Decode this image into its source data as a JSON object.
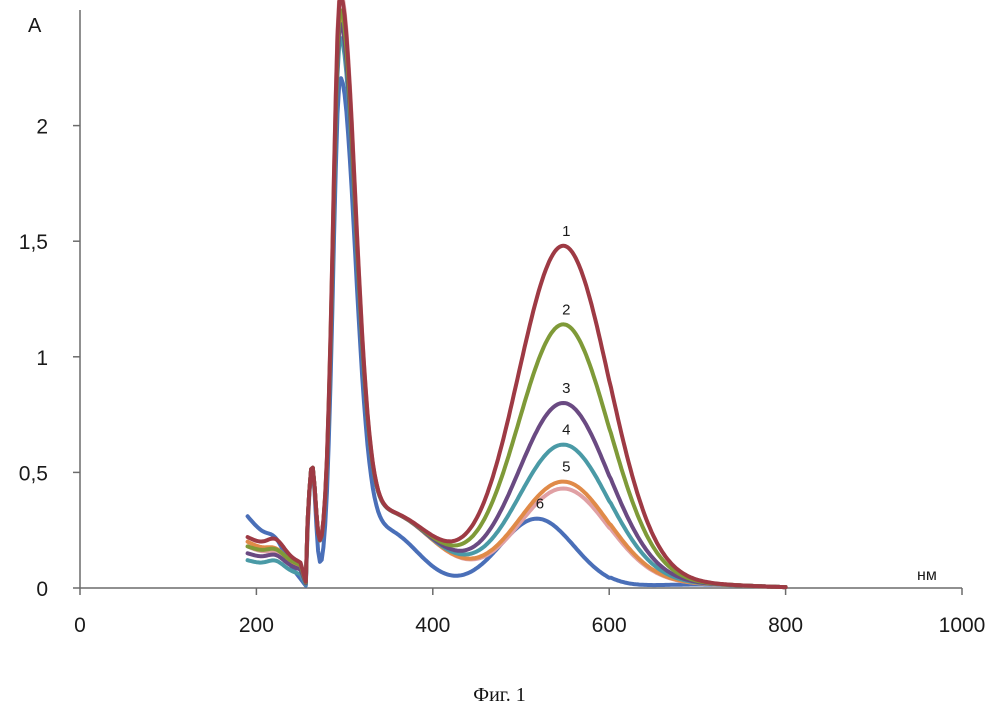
{
  "chart_data": {
    "type": "line",
    "title": "",
    "ylabel": "A",
    "xlabel": "нм",
    "xlim": [
      0,
      1000
    ],
    "ylim": [
      0,
      2.5
    ],
    "x_ticks": [
      0,
      200,
      400,
      600,
      800,
      1000
    ],
    "x_tick_labels": [
      "0",
      "200",
      "400",
      "600",
      "800",
      "1000"
    ],
    "y_ticks": [
      0,
      0.5,
      1,
      1.5,
      2
    ],
    "y_tick_labels": [
      "0",
      "0,5",
      "1",
      "1,5",
      "2"
    ],
    "grid": false,
    "legend": "none",
    "series": [
      {
        "label": "1",
        "color": "#9e3a44",
        "peak_x": 548,
        "peak_y": 1.48,
        "uv_peak": 2.36,
        "short_start": 0.22,
        "short_min": 0.11
      },
      {
        "label": "2",
        "color": "#7f9a38",
        "peak_x": 548,
        "peak_y": 1.14,
        "uv_peak": 2.3,
        "short_start": 0.18,
        "short_min": 0.1
      },
      {
        "label": "3",
        "color": "#6a4a82",
        "peak_x": 548,
        "peak_y": 0.8,
        "uv_peak": 2.24,
        "short_start": 0.15,
        "short_min": 0.08
      },
      {
        "label": "4",
        "color": "#4a9aa6",
        "peak_x": 548,
        "peak_y": 0.62,
        "uv_peak": 2.18,
        "short_start": 0.12,
        "short_min": 0.06
      },
      {
        "label": "5",
        "color": "#e08a48",
        "peak_x": 548,
        "peak_y": 0.46,
        "uv_peak": 2.26,
        "short_start": 0.2,
        "short_min": 0.09
      },
      {
        "label": "",
        "color": "#e0a0a4",
        "peak_x": 548,
        "peak_y": 0.43,
        "uv_peak": 2.38,
        "short_start": 0.18,
        "short_min": 0.08
      },
      {
        "label": "6",
        "color": "#4a6fb8",
        "peak_x": 518,
        "peak_y": 0.3,
        "uv_peak": 2.12,
        "short_start": 0.31,
        "short_min": 0.04
      }
    ]
  },
  "caption": "Фиг. 1"
}
